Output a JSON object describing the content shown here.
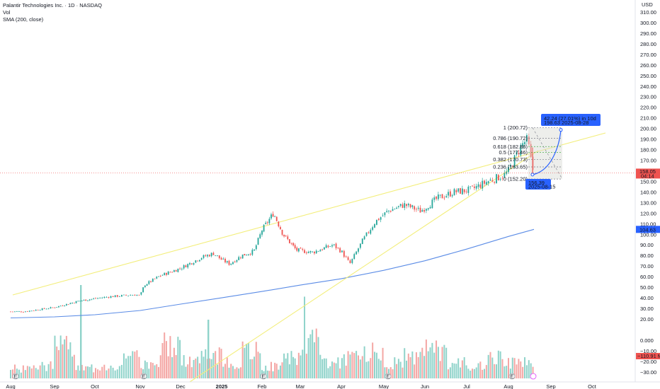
{
  "header": {
    "symbol_line": "Palantir Technologies Inc. · 1D · NASDAQ",
    "vol_label": "Vol",
    "sma_label": "SMA (200, close)",
    "currency": "USD"
  },
  "colors": {
    "up": "#26a69a",
    "down": "#ef5350",
    "vol_up": "#8fd3ca",
    "vol_down": "#f4a6a4",
    "sma": "#5b8ce6",
    "channel": "#f3ee7a",
    "price_line": "#ef5350",
    "accent_blue": "#2962ff"
  },
  "price_axis": {
    "ticks": [
      310,
      300,
      290,
      280,
      270,
      260,
      250,
      240,
      230,
      220,
      210,
      200,
      190,
      180,
      170,
      160,
      150,
      140,
      130,
      120,
      110,
      100,
      90,
      80,
      70,
      60,
      50,
      40,
      30,
      20
    ],
    "last_price_badge": "158.05",
    "last_price_sub": "04:14",
    "sma_badge": "104.63",
    "volume_ticks": [
      "0.000",
      "−10.00",
      "−20.00",
      "−30.00"
    ],
    "volume_badge": "−110.91 M"
  },
  "time_axis": {
    "labels": [
      "Aug",
      "Sep",
      "Oct",
      "Nov",
      "Dec",
      "2025",
      "Feb",
      "Mar",
      "Apr",
      "May",
      "Jun",
      "Jul",
      "Aug",
      "Sep",
      "Oct"
    ]
  },
  "fib_levels": [
    {
      "label": "1 (200.72)",
      "price": 200.72
    },
    {
      "label": "0.786 (190.72)",
      "price": 190.72
    },
    {
      "label": "0.618 (182.86)",
      "price": 182.86
    },
    {
      "label": "0.5 (177.46)",
      "price": 177.46
    },
    {
      "label": "0.382 (170.73)",
      "price": 170.73
    },
    {
      "label": "0.236 (163.65)",
      "price": 163.65
    },
    {
      "label": "0 (152.20)",
      "price": 152.2
    }
  ],
  "projection": {
    "top_label": "42.24 (27.01%) in 10d",
    "top_sub": "198.63 2025-08-28",
    "bottom_label": "156.39",
    "bottom_sub": "2025-08-15"
  },
  "earnings_markers": [
    "E",
    "E",
    "E",
    "E",
    "E"
  ],
  "chart_data": {
    "type": "candlestick",
    "title": "Palantir Technologies Inc. · 1D · NASDAQ",
    "y_unit": "USD",
    "ylim": [
      20,
      310
    ],
    "grid": false,
    "series": [
      {
        "name": "PLTR",
        "points": [
          [
            "Aug",
            27
          ],
          [
            "Sep",
            30
          ],
          [
            "Oct",
            40
          ],
          [
            "Nov",
            43
          ],
          [
            "Nov",
            62
          ],
          [
            "Dec",
            75
          ],
          [
            "Dec",
            82
          ],
          [
            "2025",
            70
          ],
          [
            "2025",
            82
          ],
          [
            "Feb",
            108
          ],
          [
            "Feb",
            123
          ],
          [
            "Mar",
            90
          ],
          [
            "Mar",
            85
          ],
          [
            "Apr",
            75
          ],
          [
            "Apr",
            95
          ],
          [
            "May",
            120
          ],
          [
            "May",
            128
          ],
          [
            "Jun",
            130
          ],
          [
            "Jun",
            140
          ],
          [
            "Jul",
            145
          ],
          [
            "Jul",
            155
          ],
          [
            "Aug",
            160
          ],
          [
            "Aug",
            190
          ],
          [
            "Aug",
            158
          ]
        ]
      },
      {
        "name": "SMA (200, close)",
        "points": [
          [
            "Aug",
            21
          ],
          [
            "Sep",
            22
          ],
          [
            "Oct",
            24
          ],
          [
            "Nov",
            28
          ],
          [
            "Dec",
            34
          ],
          [
            "2025",
            40
          ],
          [
            "Feb",
            46
          ],
          [
            "Mar",
            52
          ],
          [
            "Apr",
            58
          ],
          [
            "May",
            66
          ],
          [
            "Jun",
            75
          ],
          [
            "Jul",
            86
          ],
          [
            "Aug",
            98
          ],
          [
            "Aug",
            104.63
          ]
        ]
      },
      {
        "name": "Volume",
        "values": [
          20,
          25,
          62,
          20,
          25,
          40,
          30,
          70,
          35,
          45,
          30,
          55,
          25,
          40,
          72,
          35,
          40,
          55,
          30,
          45,
          60,
          30,
          25,
          42,
          30,
          28,
          25
        ]
      }
    ],
    "channel_upper": [
      [
        "Aug",
        43
      ],
      [
        "Aug",
        195
      ]
    ],
    "channel_lower": [
      [
        "Nov",
        5
      ],
      [
        "Oct",
        193
      ]
    ]
  }
}
